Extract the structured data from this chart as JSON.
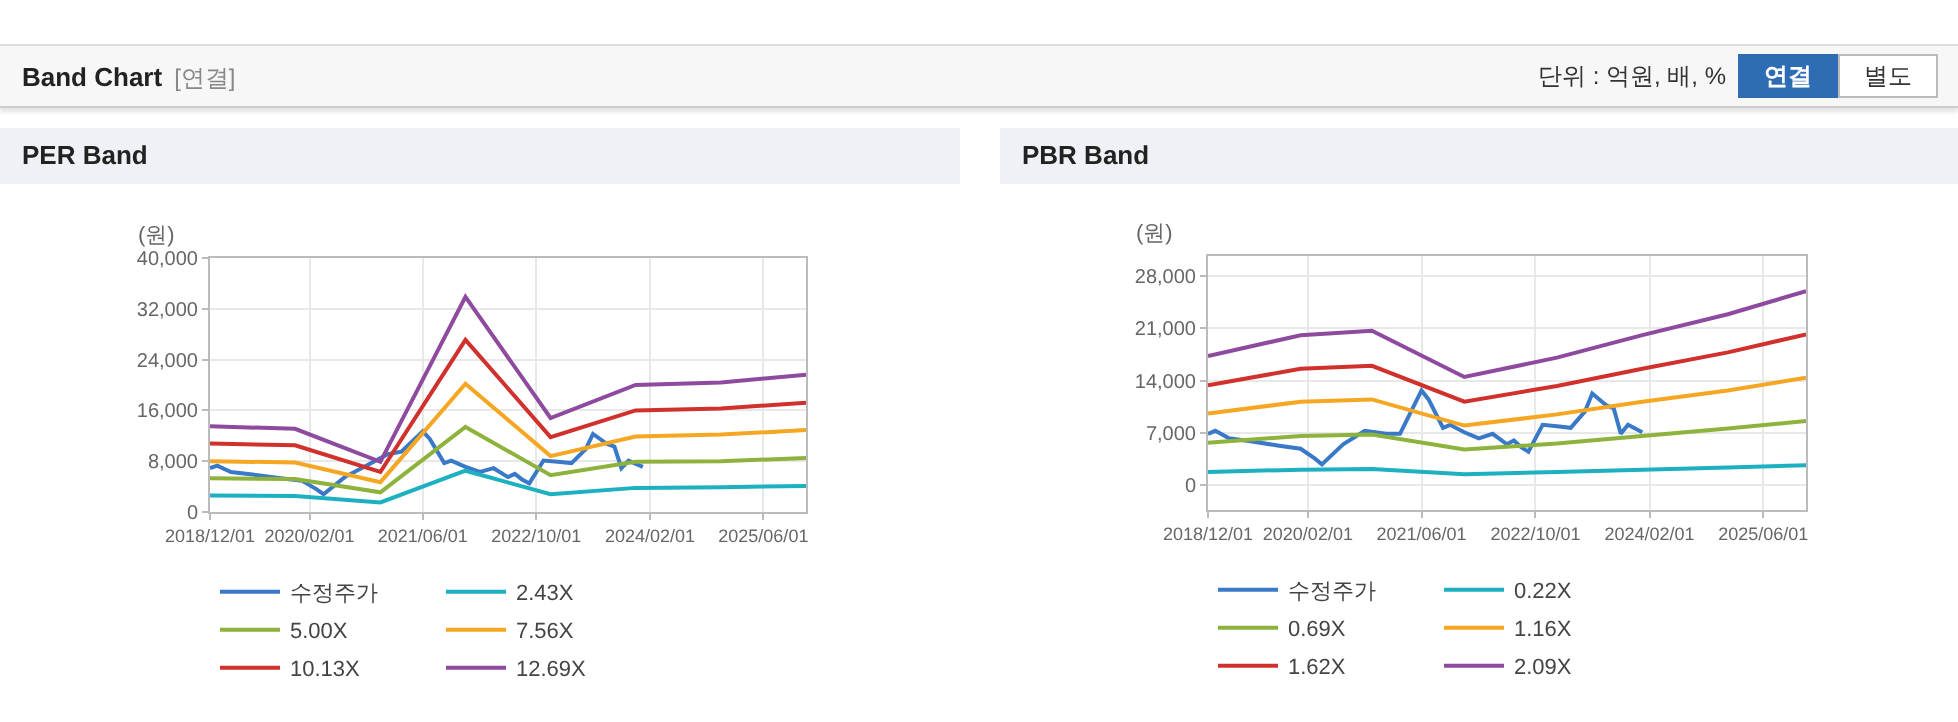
{
  "chart_data": [
    {
      "type": "other",
      "title": "Band Chart",
      "subtitle": "[연결]",
      "annotations": [
        "단위 : 억원, 배, %",
        "연결",
        "별도"
      ]
    },
    {
      "type": "line",
      "title": "PER Band",
      "ylabel": "(원)",
      "xlim": [
        "2018-12-01",
        "2025-12-01"
      ],
      "ylim": [
        0,
        40000
      ],
      "yticks": [
        0,
        {
          "value": 8000,
          "label": "8,000"
        },
        {
          "value": 16000,
          "label": "16,000"
        },
        {
          "value": 24000,
          "label": "24,000"
        },
        {
          "value": 32000,
          "label": "32,000"
        },
        {
          "value": 40000,
          "label": "40,000"
        }
      ],
      "xticks": [
        {
          "value": "2018-12-01",
          "label": "2018/12/01"
        },
        {
          "value": "2020-02-01",
          "label": "2020/02/01"
        },
        {
          "value": "2021-06-01",
          "label": "2021/06/01"
        },
        {
          "value": "2022-10-01",
          "label": "2022/10/01"
        },
        {
          "value": "2024-02-01",
          "label": "2024/02/01"
        },
        {
          "value": "2025-06-01",
          "label": "2025/06/01"
        }
      ],
      "grid": true,
      "legend": "bottom",
      "marker": "none",
      "line_style": "solid",
      "series": [
        {
          "name": "수정주가",
          "color": "#3a78c8",
          "x": [
            "2018-12",
            "2019-01",
            "2019-03",
            "2019-06",
            "2019-10",
            "2020-01",
            "2020-03",
            "2020-04",
            "2020-07",
            "2020-10",
            "2021-01",
            "2021-03",
            "2021-06",
            "2021-07",
            "2021-09",
            "2021-10",
            "2021-12",
            "2022-02",
            "2022-04",
            "2022-06",
            "2022-07",
            "2022-08",
            "2022-09",
            "2022-11",
            "2023-01",
            "2023-03",
            "2023-05",
            "2023-06",
            "2023-08",
            "2023-09",
            "2023-10",
            "2023-11",
            "2024-01"
          ],
          "values": [
            6900,
            7300,
            6300,
            5900,
            5300,
            4900,
            3600,
            2800,
            5500,
            7300,
            9100,
            9500,
            12700,
            11500,
            7700,
            8100,
            7100,
            6300,
            6900,
            5500,
            6000,
            5100,
            4500,
            8100,
            7900,
            7700,
            9900,
            12300,
            10700,
            10300,
            6900,
            8100,
            7100
          ]
        },
        {
          "name": "2.43X",
          "color": "#1cb0c0",
          "x": [
            "2018-12",
            "2019-12",
            "2020-12",
            "2021-12",
            "2022-12",
            "2023-12",
            "2024-12",
            "2025-12"
          ],
          "values": [
            2600,
            2500,
            1500,
            6500,
            2800,
            3800,
            3900,
            4100
          ]
        },
        {
          "name": "5.00X",
          "color": "#8db33c",
          "x": [
            "2018-12",
            "2019-12",
            "2020-12",
            "2021-12",
            "2022-12",
            "2023-12",
            "2024-12",
            "2025-12"
          ],
          "values": [
            5300,
            5200,
            3100,
            13400,
            5800,
            7900,
            8000,
            8500
          ]
        },
        {
          "name": "7.56X",
          "color": "#f5a623",
          "x": [
            "2018-12",
            "2019-12",
            "2020-12",
            "2021-12",
            "2022-12",
            "2023-12",
            "2024-12",
            "2025-12"
          ],
          "values": [
            8000,
            7800,
            4700,
            20200,
            8800,
            11900,
            12200,
            12900
          ]
        },
        {
          "name": "10.13X",
          "color": "#d0312d",
          "x": [
            "2018-12",
            "2019-12",
            "2020-12",
            "2021-12",
            "2022-12",
            "2023-12",
            "2024-12",
            "2025-12"
          ],
          "values": [
            10800,
            10500,
            6300,
            27100,
            11800,
            16000,
            16300,
            17200
          ]
        },
        {
          "name": "12.69X",
          "color": "#8e4a9e",
          "x": [
            "2018-12",
            "2019-12",
            "2020-12",
            "2021-12",
            "2022-12",
            "2023-12",
            "2024-12",
            "2025-12"
          ],
          "values": [
            13500,
            13100,
            7900,
            33900,
            14800,
            20000,
            20400,
            21600
          ]
        }
      ]
    },
    {
      "type": "line",
      "title": "PBR Band",
      "ylabel": "(원)",
      "xlim": [
        "2018-12-01",
        "2025-12-01"
      ],
      "ylim": [
        -3300,
        30700
      ],
      "yticks": [
        0,
        {
          "value": 7000,
          "label": "7,000"
        },
        {
          "value": 14000,
          "label": "14,000"
        },
        {
          "value": 21000,
          "label": "21,000"
        },
        {
          "value": 28000,
          "label": "28,000"
        }
      ],
      "xticks": [
        {
          "value": "2018-12-01",
          "label": "2018/12/01"
        },
        {
          "value": "2020-02-01",
          "label": "2020/02/01"
        },
        {
          "value": "2021-06-01",
          "label": "2021/06/01"
        },
        {
          "value": "2022-10-01",
          "label": "2022/10/01"
        },
        {
          "value": "2024-02-01",
          "label": "2024/02/01"
        },
        {
          "value": "2025-06-01",
          "label": "2025/06/01"
        }
      ],
      "grid": true,
      "legend": "bottom",
      "marker": "none",
      "line_style": "solid",
      "series": [
        {
          "name": "수정주가",
          "color": "#3a78c8",
          "x": [
            "2018-12",
            "2019-01",
            "2019-03",
            "2019-06",
            "2019-10",
            "2020-01",
            "2020-03",
            "2020-04",
            "2020-07",
            "2020-10",
            "2021-01",
            "2021-03",
            "2021-06",
            "2021-07",
            "2021-09",
            "2021-10",
            "2021-12",
            "2022-02",
            "2022-04",
            "2022-06",
            "2022-07",
            "2022-08",
            "2022-09",
            "2022-11",
            "2023-01",
            "2023-03",
            "2023-05",
            "2023-06",
            "2023-08",
            "2023-09",
            "2023-10",
            "2023-11",
            "2024-01"
          ],
          "values": [
            6900,
            7300,
            6300,
            5900,
            5300,
            4900,
            3600,
            2800,
            5500,
            7300,
            6900,
            6900,
            12700,
            11500,
            7700,
            8100,
            7100,
            6300,
            6900,
            5500,
            6000,
            5100,
            4500,
            8100,
            7900,
            7700,
            9900,
            12300,
            10700,
            10300,
            6900,
            8100,
            7100
          ]
        },
        {
          "name": "0.22X",
          "color": "#1cb0c0",
          "x": [
            "2018-12",
            "2020-01",
            "2020-11",
            "2021-12",
            "2023-01",
            "2024-01",
            "2025-01",
            "2025-12"
          ],
          "values": [
            1800,
            2100,
            2200,
            1500,
            1800,
            2100,
            2400,
            2700
          ]
        },
        {
          "name": "0.69X",
          "color": "#8db33c",
          "x": [
            "2018-12",
            "2020-01",
            "2020-11",
            "2021-12",
            "2023-01",
            "2024-01",
            "2025-01",
            "2025-12"
          ],
          "values": [
            5700,
            6600,
            6800,
            4800,
            5600,
            6600,
            7600,
            8600
          ]
        },
        {
          "name": "1.16X",
          "color": "#f5a623",
          "x": [
            "2018-12",
            "2020-01",
            "2020-11",
            "2021-12",
            "2023-01",
            "2024-01",
            "2025-01",
            "2025-12"
          ],
          "values": [
            9600,
            11200,
            11500,
            8000,
            9500,
            11200,
            12700,
            14400
          ]
        },
        {
          "name": "1.62X",
          "color": "#d0312d",
          "x": [
            "2018-12",
            "2020-01",
            "2020-11",
            "2021-12",
            "2023-01",
            "2024-01",
            "2025-01",
            "2025-12"
          ],
          "values": [
            13400,
            15600,
            16000,
            11200,
            13300,
            15600,
            17800,
            20200
          ]
        },
        {
          "name": "2.09X",
          "color": "#8e4a9e",
          "x": [
            "2018-12",
            "2020-01",
            "2020-11",
            "2021-12",
            "2023-01",
            "2024-01",
            "2025-01",
            "2025-12"
          ],
          "values": [
            17300,
            20100,
            20700,
            14500,
            17100,
            20100,
            22900,
            26000
          ]
        }
      ]
    }
  ]
}
